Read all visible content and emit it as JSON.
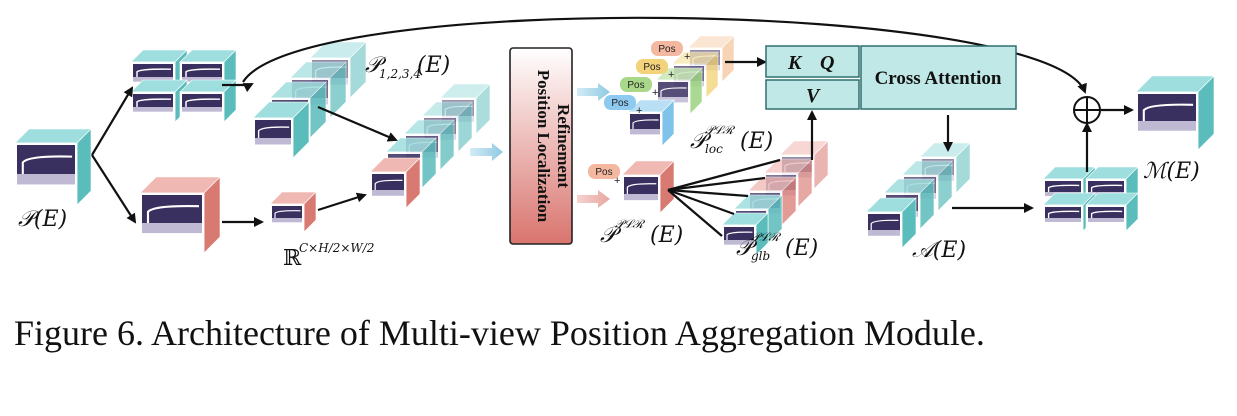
{
  "caption": "Figure 6. Architecture of Multi-view Position Aggregation Module.",
  "labels": {
    "input": "𝒫(E)",
    "multi_view": "𝒫",
    "multi_view_sub": "1,2,3,4",
    "multi_view_arg": "(E)",
    "downsampled": "ℝ",
    "downsampled_sup": "C×H/2×W/2",
    "plr_block": [
      "Position Localization",
      "Refinement"
    ],
    "p_loc": "𝒫",
    "p_loc_sup": "𝒫ℒℛ",
    "p_loc_sub": "loc",
    "p_loc_arg": "(E)",
    "p_plr": "𝒫",
    "p_plr_sup": "𝒫ℒℛ",
    "p_plr_arg": "(E)",
    "p_glb": "𝒫",
    "p_glb_sup": "𝒫ℒℛ",
    "p_glb_sub": "glb",
    "p_glb_arg": "(E)",
    "attention_out": "𝒜(E)",
    "merged_out": "ℳ(E)",
    "k": "K",
    "q": "Q",
    "v": "V",
    "cross_attention": "Cross Attention",
    "pos": "Pos",
    "plus": "+",
    "oplus": "⊕"
  },
  "colors": {
    "teal_side": "#5bbcbc",
    "teal_top": "#9fdede",
    "salmon_side": "#d97a72",
    "salmon_top": "#f0b8b2",
    "feature_dark": "#3a3060",
    "plr_top": "#ffffff",
    "plr_bottom": "#d9746e",
    "attn_box": "#bfe8e6",
    "attn_stroke": "#2e6e6e",
    "pos_colors": [
      "#f4b8a0",
      "#f3d27a",
      "#a9d88a",
      "#8ec9ef"
    ],
    "loc_gradient": [
      "#f2a07a",
      "#f2cf6a",
      "#9bd37f",
      "#7fc3ea"
    ]
  }
}
